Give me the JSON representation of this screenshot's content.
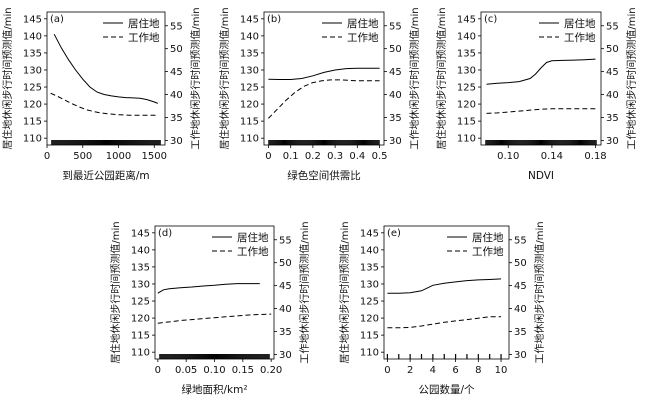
{
  "figure": {
    "legend_entries": {
      "solid": "居住地",
      "dashed": "工作地"
    },
    "left_axis_label": "居住地休闲步行时间预测值/min",
    "right_axis_label": "工作地休闲步行时间预测值/min"
  },
  "chart_data": [
    {
      "id": "a",
      "panel_label": "(a)",
      "type": "line",
      "xlabel": "到最近公园距离/m",
      "xlim": [
        0,
        1650
      ],
      "xticks": [
        0,
        500,
        1000,
        1500
      ],
      "xtick_labels": [
        "0",
        "500",
        "1000",
        "1500"
      ],
      "ylim_left": [
        108,
        147
      ],
      "yticks_left": [
        110,
        115,
        120,
        125,
        130,
        135,
        140,
        145
      ],
      "ylim_right": [
        29,
        58
      ],
      "yticks_right": [
        30,
        35,
        40,
        45,
        50,
        55
      ],
      "legend": "top-right",
      "series": [
        {
          "name": "居住地",
          "axis": "left",
          "style": "solid",
          "x": [
            100,
            200,
            300,
            400,
            500,
            600,
            700,
            800,
            900,
            1000,
            1100,
            1200,
            1300,
            1400,
            1500,
            1550
          ],
          "y": [
            140.5,
            136.5,
            133,
            130,
            127.3,
            125,
            123.5,
            122.8,
            122.4,
            122.1,
            121.9,
            121.8,
            121.7,
            121.3,
            120.6,
            120.2
          ]
        },
        {
          "name": "工作地",
          "axis": "right",
          "style": "dashed",
          "x": [
            50,
            150,
            250,
            350,
            450,
            550,
            650,
            750,
            850,
            1000,
            1150,
            1300,
            1450,
            1550
          ],
          "y": [
            40.3,
            39.6,
            38.8,
            38.0,
            37.3,
            36.7,
            36.3,
            36.0,
            35.8,
            35.6,
            35.5,
            35.5,
            35.5,
            35.5
          ]
        }
      ],
      "rug": "dense"
    },
    {
      "id": "b",
      "panel_label": "(b)",
      "type": "line",
      "xlabel": "绿色空间供需比",
      "xlim": [
        -0.02,
        0.52
      ],
      "xticks": [
        0,
        0.1,
        0.2,
        0.3,
        0.4,
        0.5
      ],
      "xtick_labels": [
        "0",
        "0.1",
        "0.2",
        "0.3",
        "0.4",
        "0.5"
      ],
      "ylim_left": [
        108,
        147
      ],
      "yticks_left": [
        110,
        115,
        120,
        125,
        130,
        135,
        140,
        145
      ],
      "ylim_right": [
        29,
        58
      ],
      "yticks_right": [
        30,
        35,
        40,
        45,
        50,
        55
      ],
      "legend": "top-right",
      "series": [
        {
          "name": "居住地",
          "axis": "left",
          "style": "solid",
          "x": [
            0,
            0.05,
            0.1,
            0.15,
            0.2,
            0.25,
            0.3,
            0.35,
            0.4,
            0.45,
            0.5
          ],
          "y": [
            127.3,
            127.2,
            127.2,
            127.5,
            128.3,
            129.3,
            130.0,
            130.4,
            130.5,
            130.5,
            130.5
          ]
        },
        {
          "name": "工作地",
          "axis": "right",
          "style": "dashed",
          "x": [
            0,
            0.04,
            0.08,
            0.12,
            0.16,
            0.2,
            0.24,
            0.28,
            0.32,
            0.36,
            0.4,
            0.45,
            0.5
          ],
          "y": [
            34.8,
            36.8,
            38.8,
            40.5,
            41.8,
            42.6,
            43.0,
            43.2,
            43.2,
            43.1,
            43.0,
            43.0,
            43.0
          ]
        }
      ],
      "rug": "dense"
    },
    {
      "id": "c",
      "panel_label": "(c)",
      "type": "line",
      "xlabel": "NDVI",
      "xlim": [
        0.075,
        0.185
      ],
      "xticks": [
        0.1,
        0.14,
        0.18
      ],
      "xtick_labels": [
        "0.10",
        "0.14",
        "0.18"
      ],
      "ylim_left": [
        108,
        147
      ],
      "yticks_left": [
        110,
        115,
        120,
        125,
        130,
        135,
        140,
        145
      ],
      "ylim_right": [
        29,
        58
      ],
      "yticks_right": [
        30,
        35,
        40,
        45,
        50,
        55
      ],
      "legend": "top-right",
      "series": [
        {
          "name": "居住地",
          "axis": "left",
          "style": "solid",
          "x": [
            0.08,
            0.09,
            0.1,
            0.11,
            0.12,
            0.125,
            0.13,
            0.135,
            0.14,
            0.15,
            0.16,
            0.17,
            0.18
          ],
          "y": [
            125.8,
            126.1,
            126.3,
            126.6,
            127.5,
            128.8,
            130.6,
            132.2,
            132.7,
            132.8,
            132.9,
            133.0,
            133.2
          ]
        },
        {
          "name": "工作地",
          "axis": "right",
          "style": "dashed",
          "x": [
            0.08,
            0.09,
            0.1,
            0.11,
            0.12,
            0.13,
            0.14,
            0.15,
            0.16,
            0.17,
            0.18
          ],
          "y": [
            35.9,
            36.0,
            36.2,
            36.4,
            36.6,
            36.8,
            36.9,
            36.9,
            36.9,
            36.9,
            36.9
          ]
        }
      ],
      "rug": "dense"
    },
    {
      "id": "d",
      "panel_label": "(d)",
      "type": "line",
      "xlabel": "绿地面积/km²",
      "xlim": [
        -0.005,
        0.205
      ],
      "xticks": [
        0,
        0.05,
        0.1,
        0.15,
        0.2
      ],
      "xtick_labels": [
        "0",
        "0.05",
        "0.10",
        "0.15",
        "0.20"
      ],
      "ylim_left": [
        108,
        147
      ],
      "yticks_left": [
        110,
        115,
        120,
        125,
        130,
        135,
        140,
        145
      ],
      "ylim_right": [
        29,
        58
      ],
      "yticks_right": [
        30,
        35,
        40,
        45,
        50,
        55
      ],
      "legend": "top-right",
      "series": [
        {
          "name": "居住地",
          "axis": "left",
          "style": "solid",
          "x": [
            0,
            0.01,
            0.02,
            0.04,
            0.06,
            0.08,
            0.1,
            0.12,
            0.14,
            0.16,
            0.18
          ],
          "y": [
            127.3,
            128.3,
            128.6,
            128.9,
            129.1,
            129.4,
            129.6,
            129.9,
            130.1,
            130.1,
            130.1
          ]
        },
        {
          "name": "工作地",
          "axis": "right",
          "style": "dashed",
          "x": [
            0,
            0.02,
            0.04,
            0.06,
            0.08,
            0.1,
            0.12,
            0.14,
            0.16,
            0.18,
            0.2
          ],
          "y": [
            36.8,
            37.1,
            37.4,
            37.6,
            37.8,
            38.0,
            38.2,
            38.4,
            38.6,
            38.7,
            38.8
          ]
        }
      ],
      "rug": "dense"
    },
    {
      "id": "e",
      "panel_label": "(e)",
      "type": "line",
      "xlabel": "公园数量/个",
      "xlim": [
        -0.3,
        10.7
      ],
      "xticks": [
        0,
        2,
        4,
        6,
        8,
        10
      ],
      "xtick_labels": [
        "0",
        "2",
        "4",
        "6",
        "8",
        "10"
      ],
      "ylim_left": [
        108,
        147
      ],
      "yticks_left": [
        110,
        115,
        120,
        125,
        130,
        135,
        140,
        145
      ],
      "ylim_right": [
        29,
        58
      ],
      "yticks_right": [
        30,
        35,
        40,
        45,
        50,
        55
      ],
      "legend": "top-right",
      "series": [
        {
          "name": "居住地",
          "axis": "left",
          "style": "solid",
          "x": [
            0,
            1,
            2,
            3,
            4,
            5,
            6,
            7,
            8,
            9,
            10
          ],
          "y": [
            127.3,
            127.3,
            127.4,
            128.0,
            129.6,
            130.2,
            130.6,
            131.0,
            131.2,
            131.3,
            131.5
          ]
        },
        {
          "name": "工作地",
          "axis": "right",
          "style": "dashed",
          "x": [
            0,
            1,
            2,
            3,
            4,
            5,
            6,
            7,
            8,
            9,
            10
          ],
          "y": [
            35.8,
            35.8,
            35.9,
            36.2,
            36.6,
            37.0,
            37.3,
            37.6,
            37.9,
            38.2,
            38.2
          ]
        }
      ],
      "rug": "sparse",
      "rug_x": [
        0,
        1,
        2,
        3,
        4,
        5,
        6,
        7,
        8,
        9,
        10
      ]
    }
  ]
}
